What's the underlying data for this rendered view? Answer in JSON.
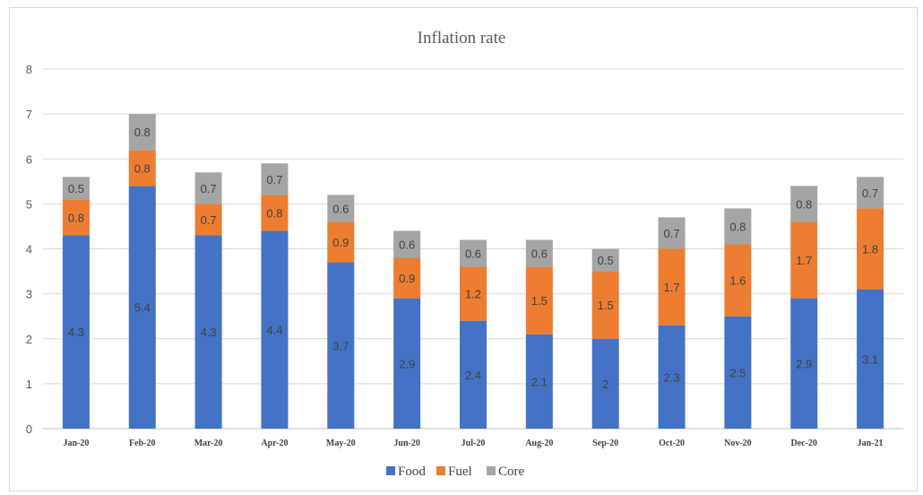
{
  "chart_data": {
    "type": "bar",
    "stacked": true,
    "title": "Inflation rate",
    "xlabel": "",
    "ylabel": "",
    "ylim": [
      0,
      8
    ],
    "yticks": [
      "0",
      "1",
      "2",
      "3",
      "4",
      "5",
      "6",
      "7",
      "8"
    ],
    "grid": true,
    "legend_position": "bottom",
    "categories": [
      "Jan-20",
      "Feb-20",
      "Mar-20",
      "Apr-20",
      "May-20",
      "Jun-20",
      "Jul-20",
      "Aug-20",
      "Sep-20",
      "Oct-20",
      "Nov-20",
      "Dec-20",
      "Jan-21"
    ],
    "series": [
      {
        "name": "Food",
        "color": "#4472c4",
        "values": [
          4.3,
          5.4,
          4.3,
          4.4,
          3.7,
          2.9,
          2.4,
          2.1,
          2,
          2.3,
          2.5,
          2.9,
          3.1
        ]
      },
      {
        "name": "Fuel",
        "color": "#ed7d31",
        "values": [
          0.8,
          0.8,
          0.7,
          0.8,
          0.9,
          0.9,
          1.2,
          1.5,
          1.5,
          1.7,
          1.6,
          1.7,
          1.8
        ]
      },
      {
        "name": "Core",
        "color": "#a5a5a5",
        "values": [
          0.5,
          0.8,
          0.7,
          0.7,
          0.6,
          0.6,
          0.6,
          0.6,
          0.5,
          0.7,
          0.8,
          0.8,
          0.7
        ]
      }
    ]
  }
}
